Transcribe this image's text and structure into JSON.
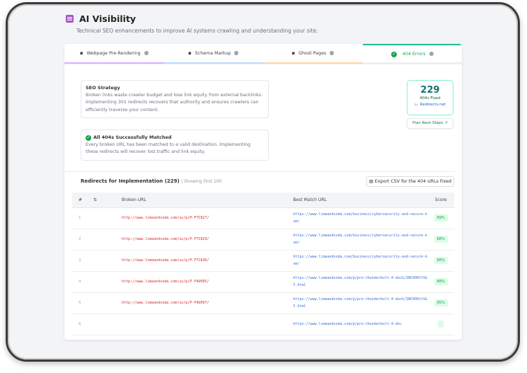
{
  "header": {
    "title": "AI Visibility",
    "subtitle": "Technical SEO enhancements to improve AI systems crawling and understanding your site."
  },
  "tabs": [
    {
      "label": "Webpage Pre-Rendering",
      "color": "#d8b4fe"
    },
    {
      "label": "Schema Markup",
      "color": "#bfdbfe"
    },
    {
      "label": "Ghost Pages",
      "color": "#fed7aa"
    },
    {
      "label": "404 Errors",
      "color": "#22c08a",
      "active": true
    }
  ],
  "strategy": {
    "title": "SEO Strategy",
    "text": "Broken links waste crawler budget and lose link equity from external backlinks. Implementing 301 redirects recovers that authority and ensures crawlers can efficiently traverse your content."
  },
  "success": {
    "title": "All 404s Successfully Matched",
    "text": "Every broken URL has been matched to a valid destination. Implementing these redirects will recover lost traffic and link equity."
  },
  "stat": {
    "value": "229",
    "label": "404s Fixed",
    "by": "by",
    "brand": "Redirects.net"
  },
  "plan_button": "Plan Next Steps ↗",
  "redirects": {
    "title": "Redirects for Implementation (229)",
    "showing": "| Showing First 100",
    "export": "Export CSV for the 404 URLs Fixed"
  },
  "table": {
    "headers": [
      "#",
      "⇅",
      "Broken URL",
      "Best Match URL",
      "Score"
    ],
    "rows": [
      {
        "n": "1",
        "broken": "http://www.limeandsoda.com/us/p/P-F7C827/",
        "match": "https://www.limeandsoda.com/business/cybersecurity-and-secure-kvm/",
        "score": "89%"
      },
      {
        "n": "2",
        "broken": "http://www.limeandsoda.com/us/p/P-F7C829/",
        "match": "https://www.limeandsoda.com/business/cybersecurity-and-secure-kvm/",
        "score": "88%"
      },
      {
        "n": "3",
        "broken": "http://www.limeandsoda.com/us/p/P-F7C830/",
        "match": "https://www.limeandsoda.com/business/cybersecurity-and-secure-kvm/",
        "score": "88%"
      },
      {
        "n": "4",
        "broken": "http://www.limeandsoda.com/us/p/P-F4U095/",
        "match": "https://www.limeandsoda.com/p/pro-thunderbolt-4-dock/INC000ttSGY.html",
        "score": "88%"
      },
      {
        "n": "5",
        "broken": "http://www.limeandsoda.com/us/p/P-F4U097/",
        "match": "https://www.limeandsoda.com/p/pro-thunderbolt-4-dock/INC000ttSGY.html",
        "score": "85%"
      },
      {
        "n": "6",
        "broken": "",
        "match": "https://www.limeandsoda.com/p/pro-thunderbolt-4-doc",
        "score": ""
      }
    ]
  }
}
